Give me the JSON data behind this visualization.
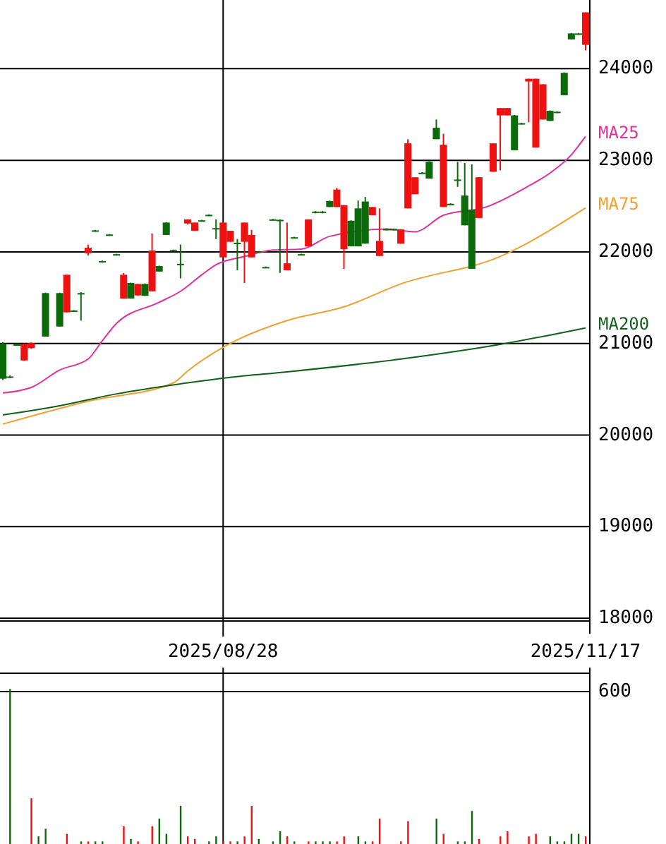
{
  "chart_data": [
    {
      "type": "candlestick",
      "categories": [
        null,
        null,
        null,
        null,
        null,
        null,
        null,
        null,
        null,
        null,
        null,
        null,
        null,
        null,
        null,
        null,
        null,
        null,
        null,
        null,
        null,
        null,
        null,
        null,
        null,
        null,
        null,
        null,
        null,
        null,
        null,
        "2025/08/28",
        null,
        null,
        null,
        null,
        null,
        null,
        null,
        null,
        null,
        null,
        null,
        null,
        null,
        null,
        null,
        null,
        null,
        null,
        null,
        null,
        null,
        null,
        null,
        null,
        null,
        null,
        null,
        null,
        null,
        null,
        null,
        null,
        null,
        null,
        null,
        null,
        null,
        null,
        null,
        null,
        null,
        null,
        null,
        null,
        null,
        null,
        null,
        null,
        null,
        null,
        "2025/11/17"
      ],
      "ylim": [
        17970,
        24750
      ],
      "yticks": [
        18000,
        19000,
        20000,
        21000,
        22000,
        23000,
        24000
      ],
      "grid": true,
      "legend": "right",
      "series": [
        {
          "type": "candlestick",
          "ohlc": [
            [
              21000,
              21015,
              20600,
              20615
            ],
            [
              20640,
              20650,
              20620,
              20630
            ],
            [
              20990,
              21000,
              20975,
              20985
            ],
            [
              20815,
              21000,
              20810,
              20995
            ],
            [
              20950,
              21010,
              20940,
              21005
            ],
            null,
            [
              21550,
              21555,
              21075,
              21075
            ],
            null,
            [
              21550,
              21555,
              21185,
              21185
            ],
            [
              21340,
              21750,
              21340,
              21750
            ],
            [
              21360,
              21365,
              21350,
              21355
            ],
            [
              21550,
              21560,
              21250,
              21540
            ],
            [
              21985,
              22080,
              21960,
              22045
            ],
            [
              22235,
              22240,
              22220,
              22225
            ],
            [
              21900,
              21905,
              21885,
              21890
            ],
            [
              22190,
              22195,
              22175,
              22180
            ],
            [
              21975,
              21980,
              21960,
              21965
            ],
            [
              21490,
              21770,
              21490,
              21750
            ],
            [
              21660,
              21665,
              21490,
              21490
            ],
            [
              21525,
              21650,
              21520,
              21650
            ],
            [
              21650,
              21655,
              21520,
              21520
            ],
            [
              21570,
              22200,
              21570,
              22015
            ],
            [
              21845,
              21850,
              21785,
              21785
            ],
            [
              22320,
              22325,
              22185,
              22185
            ],
            [
              22020,
              22025,
              22010,
              22015
            ],
            [
              21870,
              22080,
              21710,
              21860
            ],
            [
              22310,
              22355,
              22300,
              22355
            ],
            [
              22230,
              22320,
              22230,
              22320
            ],
            [
              22345,
              22350,
              22330,
              22335
            ],
            [
              22405,
              22410,
              22390,
              22395
            ],
            [
              22260,
              22355,
              22140,
              22250
            ],
            [
              21940,
              22320,
              21940,
              22320
            ],
            [
              22110,
              22230,
              22110,
              22230
            ],
            [
              22100,
              22140,
              21800,
              22090
            ],
            [
              22110,
              22320,
              21660,
              22320
            ],
            [
              21940,
              22240,
              21940,
              22185
            ],
            [
              22005,
              22010,
              21995,
              22000
            ],
            [
              21835,
              21840,
              21825,
              21830
            ],
            [
              22355,
              22360,
              22350,
              22355
            ],
            [
              22350,
              22355,
              21770,
              22340
            ],
            [
              21800,
              22320,
              21800,
              21875
            ],
            [
              22160,
              22165,
              22145,
              22150
            ],
            [
              21975,
              21980,
              21965,
              21970
            ],
            [
              22060,
              22355,
              22060,
              22355
            ],
            [
              22440,
              22445,
              22420,
              22425
            ],
            [
              22425,
              22445,
              22420,
              22440
            ],
            [
              22555,
              22560,
              22490,
              22490
            ],
            [
              22490,
              22700,
              22490,
              22680
            ],
            [
              22030,
              22510,
              21815,
              22510
            ],
            [
              22340,
              22345,
              22060,
              22060
            ],
            [
              22475,
              22560,
              22060,
              22060
            ],
            [
              22550,
              22600,
              22090,
              22090
            ],
            [
              22400,
              22490,
              22400,
              22490
            ],
            [
              21955,
              22475,
              21955,
              22120
            ],
            [
              22250,
              22255,
              22235,
              22240
            ],
            [
              22250,
              22255,
              22235,
              22240
            ],
            [
              22090,
              22245,
              22090,
              22245
            ],
            [
              22475,
              23230,
              22475,
              23185
            ],
            [
              22630,
              22815,
              22630,
              22815
            ],
            [
              22865,
              22870,
              22850,
              22855
            ],
            [
              22985,
              22990,
              22800,
              22800
            ],
            [
              23355,
              23445,
              23230,
              23230
            ],
            [
              22490,
              23290,
              22490,
              23170
            ],
            [
              22525,
              22530,
              22510,
              22515
            ],
            [
              22790,
              22985,
              22710,
              22785
            ],
            [
              22615,
              22970,
              22290,
              22290
            ],
            [
              22460,
              22955,
              21815,
              21815
            ],
            [
              22370,
              22815,
              22370,
              22815
            ],
            null,
            [
              22875,
              23185,
              22875,
              23185
            ],
            [
              23490,
              23570,
              22890,
              23570
            ],
            [
              23490,
              23570,
              23490,
              23570
            ],
            [
              23490,
              23495,
              23110,
              23110
            ],
            [
              23405,
              23410,
              23390,
              23395
            ],
            [
              23860,
              23890,
              23415,
              23890
            ],
            [
              23140,
              23890,
              23140,
              23890
            ],
            [
              23445,
              23830,
              23445,
              23830
            ],
            [
              23540,
              23545,
              23430,
              23430
            ],
            [
              23530,
              23535,
              23515,
              23520
            ],
            [
              23955,
              23960,
              23710,
              23710
            ],
            [
              24385,
              24390,
              24320,
              24320
            ],
            [
              24385,
              24390,
              24370,
              24375
            ],
            [
              24260,
              24615,
              24200,
              24615
            ]
          ],
          "colors": [
            "#0b6b0b",
            "#0b6b0b",
            "#0b6b0b",
            "#ee1111",
            "#ee1111",
            "#0b6b0b",
            "#0b6b0b",
            "#0b6b0b",
            "#0b6b0b",
            "#ee1111",
            "#0b6b0b",
            "#0b6b0b",
            "#ee1111",
            "#0b6b0b",
            "#0b6b0b",
            "#0b6b0b",
            "#0b6b0b",
            "#ee1111",
            "#0b6b0b",
            "#ee1111",
            "#0b6b0b",
            "#ee1111",
            "#0b6b0b",
            "#0b6b0b",
            "#0b6b0b",
            "#0b6b0b",
            "#ee1111",
            "#ee1111",
            "#0b6b0b",
            "#0b6b0b",
            "#0b6b0b",
            "#ee1111",
            "#ee1111",
            "#0b6b0b",
            "#ee1111",
            "#ee1111",
            "#0b6b0b",
            "#0b6b0b",
            "#0b6b0b",
            "#0b6b0b",
            "#ee1111",
            "#0b6b0b",
            "#0b6b0b",
            "#ee1111",
            "#0b6b0b",
            "#0b6b0b",
            "#0b6b0b",
            "#ee1111",
            "#ee1111",
            "#0b6b0b",
            "#0b6b0b",
            "#0b6b0b",
            "#ee1111",
            "#ee1111",
            "#0b6b0b",
            "#0b6b0b",
            "#ee1111",
            "#ee1111",
            "#ee1111",
            "#0b6b0b",
            "#0b6b0b",
            "#0b6b0b",
            "#ee1111",
            "#0b6b0b",
            "#0b6b0b",
            "#0b6b0b",
            "#0b6b0b",
            "#ee1111",
            "#0b6b0b",
            "#ee1111",
            "#ee1111",
            "#ee1111",
            "#0b6b0b",
            "#0b6b0b",
            "#ee1111",
            "#ee1111",
            "#ee1111",
            "#0b6b0b",
            "#0b6b0b",
            "#0b6b0b",
            "#0b6b0b",
            "#0b6b0b",
            "#ee1111"
          ]
        },
        {
          "type": "line",
          "name": "MA25",
          "color": "#e0309a",
          "values": [
            20460,
            null,
            null,
            null,
            20520,
            null,
            null,
            null,
            20710,
            null,
            null,
            null,
            20830,
            null,
            21030,
            null,
            21220,
            null,
            null,
            null,
            null,
            null,
            21450,
            null,
            null,
            21570,
            null,
            null,
            21750,
            null,
            21860,
            null,
            null,
            null,
            21950,
            null,
            null,
            null,
            22020,
            null,
            null,
            null,
            22030,
            null,
            null,
            null,
            22170,
            null,
            null,
            null,
            null,
            null,
            null,
            null,
            22250,
            null,
            null,
            null,
            22220,
            null,
            null,
            null,
            22400,
            null,
            null,
            null,
            null,
            null,
            22490,
            null,
            null,
            null,
            null,
            null,
            22720,
            null,
            null,
            22860,
            null,
            null,
            23060,
            null,
            23260
          ]
        },
        {
          "type": "line",
          "name": "MA75",
          "color": "#f0a030",
          "values": [
            20120,
            null,
            null,
            null,
            null,
            null,
            null,
            null,
            null,
            null,
            null,
            null,
            20370,
            null,
            null,
            null,
            null,
            null,
            null,
            null,
            null,
            null,
            null,
            null,
            20570,
            null,
            20700,
            null,
            null,
            null,
            null,
            null,
            21000,
            null,
            null,
            null,
            null,
            null,
            null,
            null,
            21250,
            null,
            null,
            null,
            null,
            null,
            null,
            null,
            21400,
            null,
            null,
            null,
            null,
            null,
            null,
            null,
            21650,
            null,
            null,
            null,
            null,
            null,
            null,
            null,
            null,
            null,
            null,
            null,
            null,
            null,
            21950,
            null,
            null,
            null,
            null,
            null,
            null,
            null,
            null,
            null,
            null,
            null,
            22480
          ]
        },
        {
          "type": "line",
          "name": "MA200",
          "color": "#11601a",
          "values": [
            20220,
            null,
            null,
            null,
            null,
            null,
            null,
            null,
            20320,
            null,
            null,
            null,
            null,
            null,
            null,
            null,
            20450,
            null,
            null,
            null,
            null,
            null,
            null,
            null,
            null,
            null,
            20570,
            null,
            null,
            null,
            null,
            null,
            20630,
            null,
            null,
            null,
            null,
            null,
            null,
            null,
            20690,
            null,
            null,
            null,
            null,
            null,
            null,
            null,
            null,
            null,
            null,
            null,
            null,
            null,
            null,
            null,
            20830,
            null,
            null,
            null,
            null,
            null,
            null,
            null,
            null,
            null,
            null,
            null,
            null,
            null,
            20990,
            null,
            null,
            null,
            null,
            null,
            null,
            null,
            null,
            null,
            null,
            null,
            21170
          ]
        }
      ]
    },
    {
      "type": "bar",
      "tick_labels": "y",
      "ylim": [
        0,
        672
      ],
      "yticks": [
        600
      ],
      "grid": "y",
      "categories": [
        null,
        null,
        null,
        null,
        null,
        null,
        null,
        null,
        null,
        null,
        null,
        null,
        null,
        null,
        null,
        null,
        null,
        null,
        null,
        null,
        null,
        null,
        null,
        null,
        null,
        null,
        null,
        null,
        null,
        null,
        null,
        null,
        null,
        null,
        null,
        null,
        null,
        null,
        null,
        null,
        null,
        null,
        null,
        null,
        null,
        null,
        null,
        null,
        null,
        null,
        null,
        null,
        null,
        null,
        null,
        null,
        null,
        null,
        null,
        null,
        null,
        null,
        null,
        null,
        null,
        null,
        null,
        null,
        null,
        null,
        null,
        null,
        null,
        null,
        null,
        null,
        null,
        null,
        null,
        null,
        null,
        null,
        null
      ],
      "values": [
        null,
        610,
        null,
        null,
        180,
        30,
        60,
        null,
        null,
        40,
        null,
        10,
        10,
        10,
        10,
        null,
        null,
        70,
        20,
        10,
        null,
        70,
        100,
        40,
        null,
        150,
        30,
        20,
        null,
        10,
        30,
        10,
        10,
        10,
        30,
        150,
        20,
        null,
        10,
        50,
        30,
        10,
        null,
        10,
        10,
        10,
        10,
        10,
        30,
        null,
        30,
        10,
        10,
        100,
        null,
        null,
        10,
        90,
        null,
        null,
        null,
        100,
        40,
        null,
        10,
        10,
        130,
        20,
        null,
        null,
        30,
        50,
        null,
        null,
        30,
        40,
        null,
        30,
        10,
        10,
        40,
        40,
        30
      ],
      "colors": [
        "#0b6b0b",
        "#0b6b0b",
        "#0b6b0b",
        "#ee1111",
        "#ee1111",
        "#0b6b0b",
        "#0b6b0b",
        "#0b6b0b",
        "#0b6b0b",
        "#ee1111",
        "#0b6b0b",
        "#0b6b0b",
        "#ee1111",
        "#0b6b0b",
        "#0b6b0b",
        "#0b6b0b",
        "#0b6b0b",
        "#ee1111",
        "#0b6b0b",
        "#ee1111",
        "#0b6b0b",
        "#ee1111",
        "#0b6b0b",
        "#0b6b0b",
        "#0b6b0b",
        "#0b6b0b",
        "#ee1111",
        "#ee1111",
        "#0b6b0b",
        "#0b6b0b",
        "#0b6b0b",
        "#ee1111",
        "#ee1111",
        "#0b6b0b",
        "#ee1111",
        "#ee1111",
        "#0b6b0b",
        "#0b6b0b",
        "#0b6b0b",
        "#0b6b0b",
        "#ee1111",
        "#0b6b0b",
        "#0b6b0b",
        "#ee1111",
        "#0b6b0b",
        "#0b6b0b",
        "#0b6b0b",
        "#ee1111",
        "#ee1111",
        "#0b6b0b",
        "#0b6b0b",
        "#0b6b0b",
        "#ee1111",
        "#ee1111",
        "#0b6b0b",
        "#0b6b0b",
        "#ee1111",
        "#ee1111",
        "#ee1111",
        "#0b6b0b",
        "#0b6b0b",
        "#0b6b0b",
        "#ee1111",
        "#0b6b0b",
        "#0b6b0b",
        "#0b6b0b",
        "#0b6b0b",
        "#ee1111",
        "#0b6b0b",
        "#ee1111",
        "#ee1111",
        "#ee1111",
        "#0b6b0b",
        "#0b6b0b",
        "#ee1111",
        "#ee1111",
        "#ee1111",
        "#0b6b0b",
        "#0b6b0b",
        "#0b6b0b",
        "#0b6b0b",
        "#0b6b0b",
        "#ee1111"
      ]
    }
  ]
}
